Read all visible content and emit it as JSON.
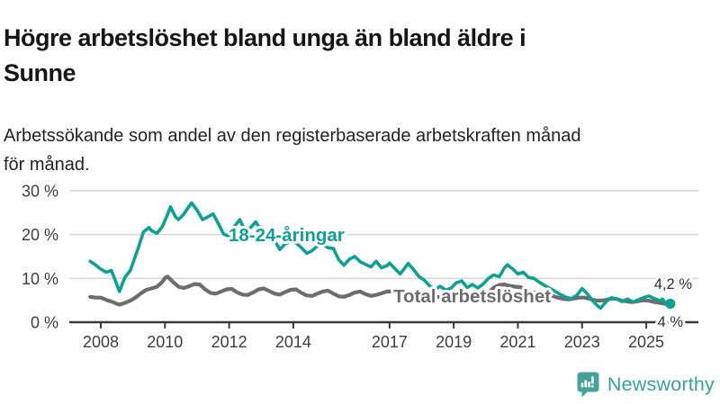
{
  "header": {
    "title_line1": "Högre arbetslöshet bland unga än bland äldre i",
    "title_line2": "Sunne",
    "subtitle_line1": "Arbetssökande som andel av den registerbaserade arbetskraften månad",
    "subtitle_line2": "för månad."
  },
  "chart_data": {
    "type": "line",
    "title": "Högre arbetslöshet bland unga än bland äldre i Sunne",
    "subtitle": "Arbetssökande som andel av den registerbaserade arbetskraften månad för månad.",
    "unit": "%",
    "grid": "horizontal-only",
    "x_axis": {
      "tick_years": [
        2008,
        2010,
        2012,
        2014,
        2017,
        2019,
        2021,
        2023,
        2025
      ]
    },
    "y_axis": {
      "ticks": [
        0,
        10,
        20,
        30
      ],
      "tick_labels": [
        "0 %",
        "10 %",
        "20 %",
        "30 %"
      ],
      "min": 0,
      "max": 30
    },
    "colors": {
      "youth": "#0fa095",
      "total": "#6d6d70",
      "grid": "#d8d8d8",
      "axis": "#3a3a3a",
      "tick_text": "#3d3d3d",
      "annotation_text": "#2e2e2e",
      "halo": "#ffffff"
    },
    "series": [
      {
        "id": "total",
        "name": "Total arbetslöshet",
        "color": "#6d6d70",
        "end_label": "4 %",
        "end_value": 4.0,
        "points": [
          [
            2007.67,
            5.8
          ],
          [
            2007.83,
            5.6
          ],
          [
            2008.0,
            5.6
          ],
          [
            2008.17,
            5.1
          ],
          [
            2008.33,
            4.7
          ],
          [
            2008.5,
            4.2
          ],
          [
            2008.58,
            4.0
          ],
          [
            2008.75,
            4.4
          ],
          [
            2008.92,
            4.9
          ],
          [
            2009.08,
            5.6
          ],
          [
            2009.25,
            6.6
          ],
          [
            2009.42,
            7.4
          ],
          [
            2009.58,
            7.7
          ],
          [
            2009.75,
            8.1
          ],
          [
            2009.92,
            9.2
          ],
          [
            2010.0,
            10.1
          ],
          [
            2010.08,
            10.4
          ],
          [
            2010.25,
            9.2
          ],
          [
            2010.42,
            8.1
          ],
          [
            2010.58,
            7.8
          ],
          [
            2010.75,
            8.2
          ],
          [
            2010.92,
            8.7
          ],
          [
            2011.08,
            8.6
          ],
          [
            2011.25,
            7.5
          ],
          [
            2011.42,
            6.7
          ],
          [
            2011.58,
            6.5
          ],
          [
            2011.75,
            7.0
          ],
          [
            2011.92,
            7.5
          ],
          [
            2012.08,
            7.6
          ],
          [
            2012.25,
            6.8
          ],
          [
            2012.42,
            6.3
          ],
          [
            2012.58,
            6.2
          ],
          [
            2012.75,
            6.8
          ],
          [
            2012.92,
            7.5
          ],
          [
            2013.08,
            7.7
          ],
          [
            2013.25,
            7.1
          ],
          [
            2013.42,
            6.5
          ],
          [
            2013.58,
            6.3
          ],
          [
            2013.75,
            6.9
          ],
          [
            2013.92,
            7.4
          ],
          [
            2014.08,
            7.5
          ],
          [
            2014.25,
            6.7
          ],
          [
            2014.42,
            6.1
          ],
          [
            2014.58,
            6.0
          ],
          [
            2014.75,
            6.5
          ],
          [
            2014.92,
            7.0
          ],
          [
            2015.08,
            7.2
          ],
          [
            2015.25,
            6.5
          ],
          [
            2015.42,
            5.9
          ],
          [
            2015.58,
            5.8
          ],
          [
            2015.75,
            6.2
          ],
          [
            2015.92,
            6.8
          ],
          [
            2016.08,
            7.0
          ],
          [
            2016.25,
            6.4
          ],
          [
            2016.42,
            6.0
          ],
          [
            2016.58,
            6.2
          ],
          [
            2016.75,
            6.6
          ],
          [
            2016.92,
            7.0
          ],
          [
            2017.08,
            7.0
          ],
          [
            2017.25,
            6.5
          ],
          [
            2017.42,
            6.2
          ],
          [
            2017.58,
            6.3
          ],
          [
            2017.75,
            6.6
          ],
          [
            2017.92,
            6.7
          ],
          [
            2018.08,
            6.5
          ],
          [
            2018.25,
            6.0
          ],
          [
            2018.42,
            5.7
          ],
          [
            2018.58,
            5.8
          ],
          [
            2018.75,
            6.0
          ],
          [
            2018.92,
            6.2
          ],
          [
            2019.08,
            6.2
          ],
          [
            2019.25,
            5.9
          ],
          [
            2019.42,
            5.7
          ],
          [
            2019.58,
            5.9
          ],
          [
            2019.75,
            6.1
          ],
          [
            2019.92,
            6.4
          ],
          [
            2020.08,
            6.7
          ],
          [
            2020.25,
            7.9
          ],
          [
            2020.42,
            8.5
          ],
          [
            2020.58,
            8.6
          ],
          [
            2020.75,
            8.3
          ],
          [
            2020.92,
            8.1
          ],
          [
            2021.08,
            8.0
          ],
          [
            2021.25,
            7.4
          ],
          [
            2021.42,
            6.9
          ],
          [
            2021.58,
            6.7
          ],
          [
            2021.75,
            6.4
          ],
          [
            2021.92,
            6.2
          ],
          [
            2022.08,
            6.0
          ],
          [
            2022.25,
            5.6
          ],
          [
            2022.42,
            5.3
          ],
          [
            2022.58,
            5.2
          ],
          [
            2022.75,
            5.4
          ],
          [
            2022.92,
            5.6
          ],
          [
            2023.08,
            5.6
          ],
          [
            2023.25,
            5.3
          ],
          [
            2023.42,
            5.0
          ],
          [
            2023.58,
            4.9
          ],
          [
            2023.75,
            5.1
          ],
          [
            2023.92,
            5.4
          ],
          [
            2024.08,
            5.3
          ],
          [
            2024.25,
            4.9
          ],
          [
            2024.42,
            4.7
          ],
          [
            2024.58,
            4.6
          ],
          [
            2024.75,
            4.8
          ],
          [
            2024.92,
            5.0
          ],
          [
            2025.08,
            4.9
          ],
          [
            2025.25,
            4.6
          ],
          [
            2025.42,
            4.4
          ],
          [
            2025.58,
            4.2
          ],
          [
            2025.75,
            4.0
          ]
        ]
      },
      {
        "id": "youth",
        "name": "18-24-åringar",
        "color": "#0fa095",
        "end_label": "4,2 %",
        "end_value": 4.2,
        "points": [
          [
            2007.67,
            13.9
          ],
          [
            2007.83,
            13.1
          ],
          [
            2008.0,
            12.1
          ],
          [
            2008.17,
            11.4
          ],
          [
            2008.33,
            11.8
          ],
          [
            2008.5,
            8.6
          ],
          [
            2008.58,
            7.0
          ],
          [
            2008.75,
            10.2
          ],
          [
            2008.92,
            11.8
          ],
          [
            2009.0,
            13.5
          ],
          [
            2009.17,
            17.0
          ],
          [
            2009.33,
            20.6
          ],
          [
            2009.5,
            21.6
          ],
          [
            2009.58,
            20.9
          ],
          [
            2009.75,
            20.3
          ],
          [
            2009.92,
            21.8
          ],
          [
            2010.08,
            24.6
          ],
          [
            2010.17,
            26.3
          ],
          [
            2010.33,
            24.0
          ],
          [
            2010.42,
            23.4
          ],
          [
            2010.58,
            24.6
          ],
          [
            2010.75,
            26.4
          ],
          [
            2010.83,
            27.2
          ],
          [
            2011.0,
            25.6
          ],
          [
            2011.17,
            23.4
          ],
          [
            2011.33,
            24.0
          ],
          [
            2011.5,
            24.7
          ],
          [
            2011.67,
            22.4
          ],
          [
            2011.83,
            20.1
          ],
          [
            2012.0,
            19.6
          ],
          [
            2012.17,
            21.9
          ],
          [
            2012.33,
            23.4
          ],
          [
            2012.5,
            20.8
          ],
          [
            2012.67,
            21.6
          ],
          [
            2012.83,
            22.9
          ],
          [
            2013.0,
            20.9
          ],
          [
            2013.17,
            19.0
          ],
          [
            2013.33,
            19.5
          ],
          [
            2013.5,
            17.6
          ],
          [
            2013.58,
            16.6
          ],
          [
            2013.75,
            17.9
          ],
          [
            2013.92,
            18.4
          ],
          [
            2014.08,
            18.1
          ],
          [
            2014.25,
            17.0
          ],
          [
            2014.42,
            15.7
          ],
          [
            2014.58,
            16.3
          ],
          [
            2014.75,
            17.4
          ],
          [
            2014.92,
            17.6
          ],
          [
            2015.08,
            17.0
          ],
          [
            2015.25,
            16.8
          ],
          [
            2015.42,
            14.2
          ],
          [
            2015.58,
            13.0
          ],
          [
            2015.75,
            14.4
          ],
          [
            2015.92,
            15.0
          ],
          [
            2016.08,
            13.8
          ],
          [
            2016.25,
            13.2
          ],
          [
            2016.42,
            12.6
          ],
          [
            2016.58,
            13.9
          ],
          [
            2016.75,
            12.4
          ],
          [
            2016.92,
            12.9
          ],
          [
            2017.0,
            13.5
          ],
          [
            2017.17,
            12.2
          ],
          [
            2017.33,
            11.0
          ],
          [
            2017.5,
            12.6
          ],
          [
            2017.58,
            13.4
          ],
          [
            2017.75,
            12.0
          ],
          [
            2017.92,
            10.4
          ],
          [
            2018.08,
            9.6
          ],
          [
            2018.25,
            8.3
          ],
          [
            2018.42,
            7.5
          ],
          [
            2018.58,
            8.2
          ],
          [
            2018.75,
            7.3
          ],
          [
            2018.92,
            7.8
          ],
          [
            2019.08,
            9.0
          ],
          [
            2019.25,
            9.4
          ],
          [
            2019.42,
            7.9
          ],
          [
            2019.58,
            8.6
          ],
          [
            2019.75,
            7.8
          ],
          [
            2019.92,
            8.7
          ],
          [
            2020.08,
            10.0
          ],
          [
            2020.25,
            10.8
          ],
          [
            2020.42,
            10.4
          ],
          [
            2020.58,
            12.4
          ],
          [
            2020.67,
            13.1
          ],
          [
            2020.83,
            12.2
          ],
          [
            2021.0,
            11.0
          ],
          [
            2021.17,
            11.4
          ],
          [
            2021.33,
            10.2
          ],
          [
            2021.5,
            10.0
          ],
          [
            2021.67,
            9.1
          ],
          [
            2021.83,
            8.4
          ],
          [
            2022.0,
            7.7
          ],
          [
            2022.17,
            7.0
          ],
          [
            2022.33,
            6.3
          ],
          [
            2022.5,
            5.7
          ],
          [
            2022.67,
            5.4
          ],
          [
            2022.83,
            6.1
          ],
          [
            2023.0,
            7.7
          ],
          [
            2023.17,
            6.4
          ],
          [
            2023.33,
            4.9
          ],
          [
            2023.5,
            3.6
          ],
          [
            2023.58,
            3.2
          ],
          [
            2023.75,
            4.7
          ],
          [
            2023.92,
            5.6
          ],
          [
            2024.08,
            5.3
          ],
          [
            2024.25,
            4.7
          ],
          [
            2024.42,
            5.3
          ],
          [
            2024.58,
            4.6
          ],
          [
            2024.75,
            5.1
          ],
          [
            2024.92,
            5.6
          ],
          [
            2025.08,
            6.0
          ],
          [
            2025.25,
            5.4
          ],
          [
            2025.42,
            4.9
          ],
          [
            2025.5,
            5.3
          ],
          [
            2025.58,
            4.6
          ],
          [
            2025.75,
            4.2
          ]
        ]
      }
    ],
    "legend_position": "inline-labels-on-lines"
  },
  "footer": {
    "brand": "Newsworthy",
    "brand_color": "#35a29a",
    "brand_icon": "bar-chart-speech-bubble-icon"
  }
}
